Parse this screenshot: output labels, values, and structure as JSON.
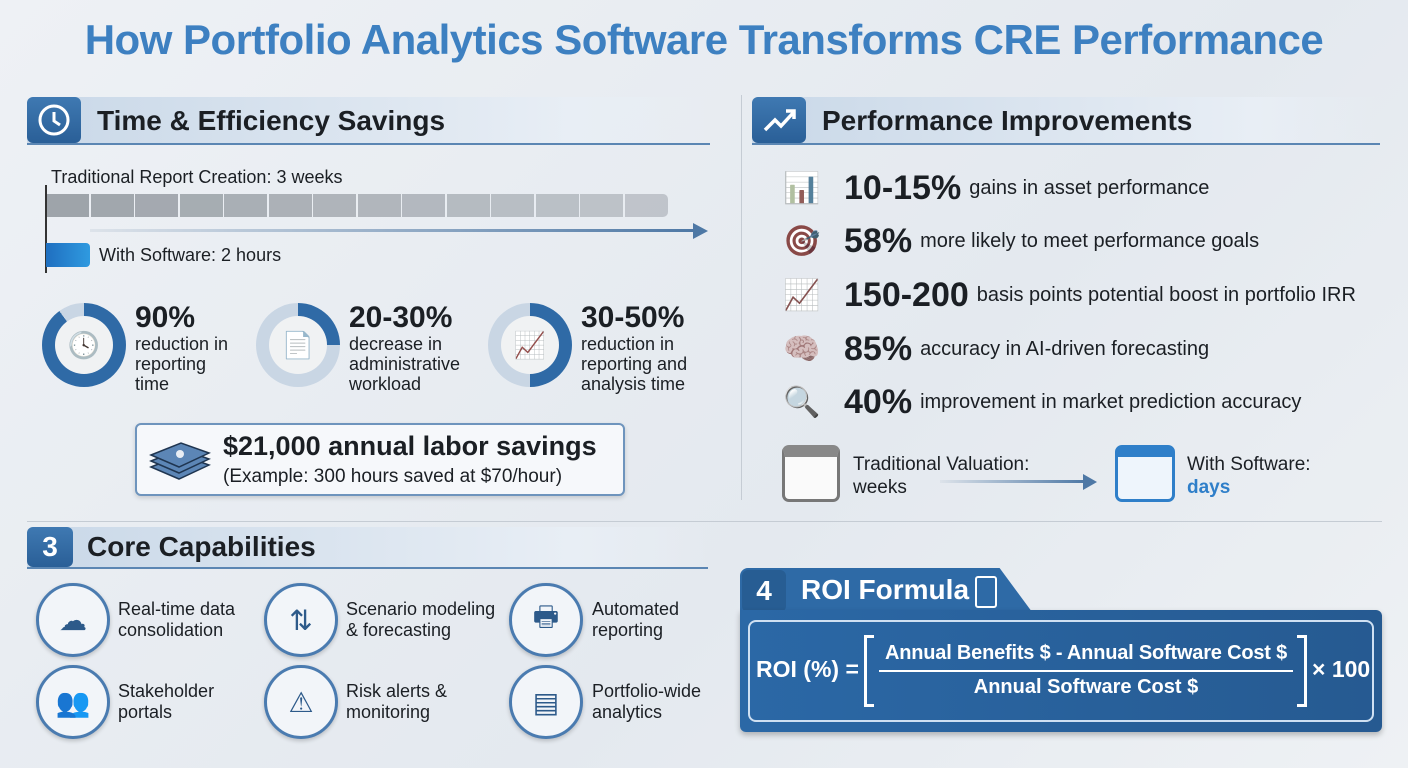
{
  "title": "How Portfolio Analytics Software Transforms CRE Performance",
  "time_section": {
    "title": "Time & Efficiency Savings",
    "icon": "clock-icon",
    "traditional_label": "Traditional Report Creation: 3 weeks",
    "software_label": "With Software: 2 hours",
    "stats": [
      {
        "value": "90%",
        "lines": [
          "reduction in",
          "reporting",
          "time"
        ],
        "icon": "clock-icon",
        "fill": 0.9
      },
      {
        "value": "20-30%",
        "lines": [
          "decrease in",
          "administrative",
          "workload"
        ],
        "icon": "document-icon",
        "fill": 0.25
      },
      {
        "value": "30-50%",
        "lines": [
          "reduction in",
          "reporting and",
          "analysis time"
        ],
        "icon": "presentation-chart-icon",
        "fill": 0.5
      }
    ],
    "savings": {
      "title": "$21,000 annual labor savings",
      "subtitle": "(Example: 300 hours saved at $70/hour)",
      "icon": "money-stack-icon"
    }
  },
  "performance_section": {
    "title": "Performance Improvements",
    "icon": "trend-up-icon",
    "items": [
      {
        "value": "10-15%",
        "text": "gains in asset performance",
        "icon": "bar-chart-icon"
      },
      {
        "value": "58%",
        "text": "more likely to meet performance goals",
        "icon": "target-icon"
      },
      {
        "value": "150-200",
        "text": "basis points potential boost in portfolio IRR",
        "icon": "growth-chart-icon"
      },
      {
        "value": "85%",
        "text": "accuracy in AI-driven forecasting",
        "icon": "brain-gear-icon"
      },
      {
        "value": "40%",
        "text": "improvement in market prediction accuracy",
        "icon": "magnifier-chart-icon"
      }
    ],
    "valuation": {
      "traditional_line1": "Traditional Valuation:",
      "traditional_line2": "weeks",
      "software_line1": "With Software:",
      "software_line2": "days"
    }
  },
  "capabilities_section": {
    "number": "3",
    "title": "Core Capabilities",
    "items": [
      {
        "lines": [
          "Real-time data",
          "consolidation"
        ],
        "icon": "cloud-network-icon"
      },
      {
        "lines": [
          "Scenario modeling",
          "& forecasting"
        ],
        "icon": "split-arrows-icon"
      },
      {
        "lines": [
          "Automated",
          "reporting"
        ],
        "icon": "printer-icon"
      },
      {
        "lines": [
          "Stakeholder",
          "portals"
        ],
        "icon": "users-portal-icon"
      },
      {
        "lines": [
          "Risk alerts &",
          "monitoring"
        ],
        "icon": "shield-alert-icon"
      },
      {
        "lines": [
          "Portfolio-wide",
          "analytics"
        ],
        "icon": "dashboard-icon"
      }
    ]
  },
  "roi_section": {
    "number": "4",
    "title": "ROI Formula",
    "icon": "calculator-icon",
    "lhs": "ROI (%) =",
    "numerator": "Annual Benefits $ - Annual Software Cost $",
    "denominator": "Annual Software Cost $",
    "multiplier": "× 100"
  },
  "colors": {
    "title": "#3d80c1",
    "accent": "#2a5f97",
    "highlight": "#2f7fc9"
  }
}
